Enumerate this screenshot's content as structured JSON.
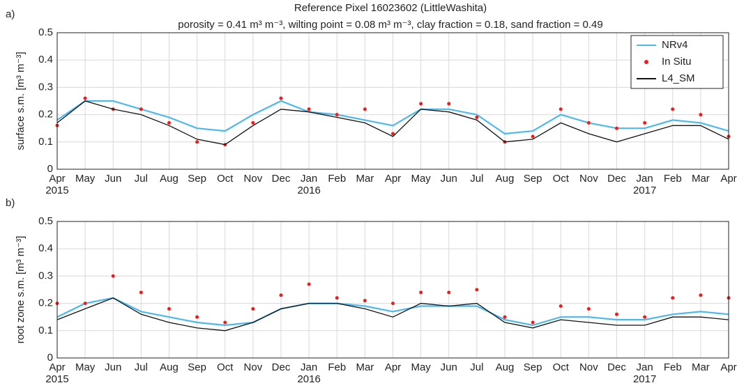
{
  "chart_data": [
    {
      "type": "line",
      "panel_label": "a)",
      "title": "Reference Pixel 16023602 (LittleWashita)",
      "subtitle": "porosity = 0.41 m³ m⁻³, wilting point = 0.08 m³ m⁻³, clay fraction = 0.18, sand fraction = 0.49",
      "y_label": "surface s.m. [m³ m⁻³]",
      "x": [
        "2015-04",
        "2015-05",
        "2015-06",
        "2015-07",
        "2015-08",
        "2015-09",
        "2015-10",
        "2015-11",
        "2015-12",
        "2016-01",
        "2016-02",
        "2016-03",
        "2016-04",
        "2016-05",
        "2016-06",
        "2016-07",
        "2016-08",
        "2016-09",
        "2016-10",
        "2016-11",
        "2016-12",
        "2017-01",
        "2017-02",
        "2017-03",
        "2017-04"
      ],
      "xlim": [
        "2015-04",
        "2017-04"
      ],
      "xticks": [
        {
          "value": "2015-04",
          "label": "Apr"
        },
        {
          "value": "2015-05",
          "label": "May"
        },
        {
          "value": "2015-06",
          "label": "Jun"
        },
        {
          "value": "2015-07",
          "label": "Jul"
        },
        {
          "value": "2015-08",
          "label": "Aug"
        },
        {
          "value": "2015-09",
          "label": "Sep"
        },
        {
          "value": "2015-10",
          "label": "Oct"
        },
        {
          "value": "2015-11",
          "label": "Nov"
        },
        {
          "value": "2015-12",
          "label": "Dec"
        },
        {
          "value": "2016-01",
          "label": "Jan"
        },
        {
          "value": "2016-02",
          "label": "Feb"
        },
        {
          "value": "2016-03",
          "label": "Mar"
        },
        {
          "value": "2016-04",
          "label": "Apr"
        },
        {
          "value": "2016-05",
          "label": "May"
        },
        {
          "value": "2016-06",
          "label": "Jun"
        },
        {
          "value": "2016-07",
          "label": "Jul"
        },
        {
          "value": "2016-08",
          "label": "Aug"
        },
        {
          "value": "2016-09",
          "label": "Sep"
        },
        {
          "value": "2016-10",
          "label": "Oct"
        },
        {
          "value": "2016-11",
          "label": "Nov"
        },
        {
          "value": "2016-12",
          "label": "Dec"
        },
        {
          "value": "2017-01",
          "label": "Jan"
        },
        {
          "value": "2017-02",
          "label": "Feb"
        },
        {
          "value": "2017-03",
          "label": "Mar"
        },
        {
          "value": "2017-04",
          "label": "Apr"
        }
      ],
      "xtick_years": [
        {
          "value": "2015-04",
          "label": "2015"
        },
        {
          "value": "2016-01",
          "label": "2016"
        },
        {
          "value": "2017-01",
          "label": "2017"
        }
      ],
      "ylim": [
        0,
        0.5
      ],
      "yticks": [
        0,
        0.1,
        0.2,
        0.3,
        0.4,
        0.5
      ],
      "grid": true,
      "legend": "upper right",
      "series": [
        {
          "name": "NRv4",
          "color": "#4db8ec",
          "mode": "lines",
          "values": [
            0.18,
            0.25,
            0.25,
            0.22,
            0.19,
            0.15,
            0.14,
            0.2,
            0.25,
            0.21,
            0.2,
            0.18,
            0.16,
            0.22,
            0.22,
            0.2,
            0.13,
            0.14,
            0.2,
            0.17,
            0.15,
            0.15,
            0.18,
            0.17,
            0.14
          ]
        },
        {
          "name": "In Situ",
          "color": "#ee1c1c",
          "mode": "markers",
          "values": [
            0.16,
            0.26,
            0.22,
            0.22,
            0.17,
            0.1,
            0.09,
            0.17,
            0.26,
            0.22,
            0.2,
            0.22,
            0.13,
            0.24,
            0.24,
            0.19,
            0.1,
            0.12,
            0.22,
            0.17,
            0.15,
            0.17,
            0.22,
            0.2,
            0.12
          ]
        },
        {
          "name": "L4_SM",
          "color": "#111111",
          "mode": "lines",
          "values": [
            0.17,
            0.25,
            0.22,
            0.2,
            0.16,
            0.11,
            0.09,
            0.16,
            0.22,
            0.21,
            0.19,
            0.17,
            0.12,
            0.22,
            0.21,
            0.18,
            0.1,
            0.11,
            0.17,
            0.13,
            0.1,
            0.13,
            0.16,
            0.16,
            0.11
          ]
        }
      ]
    },
    {
      "type": "line",
      "panel_label": "b)",
      "y_label": "root zone s.m. [m³ m⁻³]",
      "x": [
        "2015-04",
        "2015-05",
        "2015-06",
        "2015-07",
        "2015-08",
        "2015-09",
        "2015-10",
        "2015-11",
        "2015-12",
        "2016-01",
        "2016-02",
        "2016-03",
        "2016-04",
        "2016-05",
        "2016-06",
        "2016-07",
        "2016-08",
        "2016-09",
        "2016-10",
        "2016-11",
        "2016-12",
        "2017-01",
        "2017-02",
        "2017-03",
        "2017-04"
      ],
      "xlim": [
        "2015-04",
        "2017-04"
      ],
      "xticks": [
        {
          "value": "2015-04",
          "label": "Apr"
        },
        {
          "value": "2015-05",
          "label": "May"
        },
        {
          "value": "2015-06",
          "label": "Jun"
        },
        {
          "value": "2015-07",
          "label": "Jul"
        },
        {
          "value": "2015-08",
          "label": "Aug"
        },
        {
          "value": "2015-09",
          "label": "Sep"
        },
        {
          "value": "2015-10",
          "label": "Oct"
        },
        {
          "value": "2015-11",
          "label": "Nov"
        },
        {
          "value": "2015-12",
          "label": "Dec"
        },
        {
          "value": "2016-01",
          "label": "Jan"
        },
        {
          "value": "2016-02",
          "label": "Feb"
        },
        {
          "value": "2016-03",
          "label": "Mar"
        },
        {
          "value": "2016-04",
          "label": "Apr"
        },
        {
          "value": "2016-05",
          "label": "May"
        },
        {
          "value": "2016-06",
          "label": "Jun"
        },
        {
          "value": "2016-07",
          "label": "Jul"
        },
        {
          "value": "2016-08",
          "label": "Aug"
        },
        {
          "value": "2016-09",
          "label": "Sep"
        },
        {
          "value": "2016-10",
          "label": "Oct"
        },
        {
          "value": "2016-11",
          "label": "Nov"
        },
        {
          "value": "2016-12",
          "label": "Dec"
        },
        {
          "value": "2017-01",
          "label": "Jan"
        },
        {
          "value": "2017-02",
          "label": "Feb"
        },
        {
          "value": "2017-03",
          "label": "Mar"
        },
        {
          "value": "2017-04",
          "label": "Apr"
        }
      ],
      "xtick_years": [
        {
          "value": "2015-04",
          "label": "2015"
        },
        {
          "value": "2016-01",
          "label": "2016"
        },
        {
          "value": "2017-01",
          "label": "2017"
        }
      ],
      "ylim": [
        0,
        0.5
      ],
      "yticks": [
        0,
        0.1,
        0.2,
        0.3,
        0.4,
        0.5
      ],
      "grid": true,
      "series": [
        {
          "color": "#4db8ec",
          "mode": "lines",
          "values": [
            0.15,
            0.2,
            0.22,
            0.17,
            0.15,
            0.13,
            0.12,
            0.13,
            0.18,
            0.2,
            0.2,
            0.19,
            0.17,
            0.19,
            0.19,
            0.19,
            0.14,
            0.12,
            0.15,
            0.15,
            0.14,
            0.14,
            0.16,
            0.17,
            0.16
          ]
        },
        {
          "color": "#ee1c1c",
          "mode": "markers",
          "values": [
            0.2,
            0.2,
            0.3,
            0.24,
            0.18,
            0.15,
            0.13,
            0.18,
            0.23,
            0.27,
            0.22,
            0.21,
            0.2,
            0.24,
            0.24,
            0.25,
            0.15,
            0.13,
            0.19,
            0.18,
            0.16,
            0.15,
            0.22,
            0.23,
            0.22
          ]
        },
        {
          "color": "#111111",
          "mode": "lines",
          "values": [
            0.14,
            0.18,
            0.22,
            0.16,
            0.13,
            0.11,
            0.1,
            0.13,
            0.18,
            0.2,
            0.2,
            0.18,
            0.15,
            0.2,
            0.19,
            0.2,
            0.13,
            0.11,
            0.14,
            0.13,
            0.12,
            0.12,
            0.15,
            0.15,
            0.14
          ]
        }
      ]
    }
  ]
}
